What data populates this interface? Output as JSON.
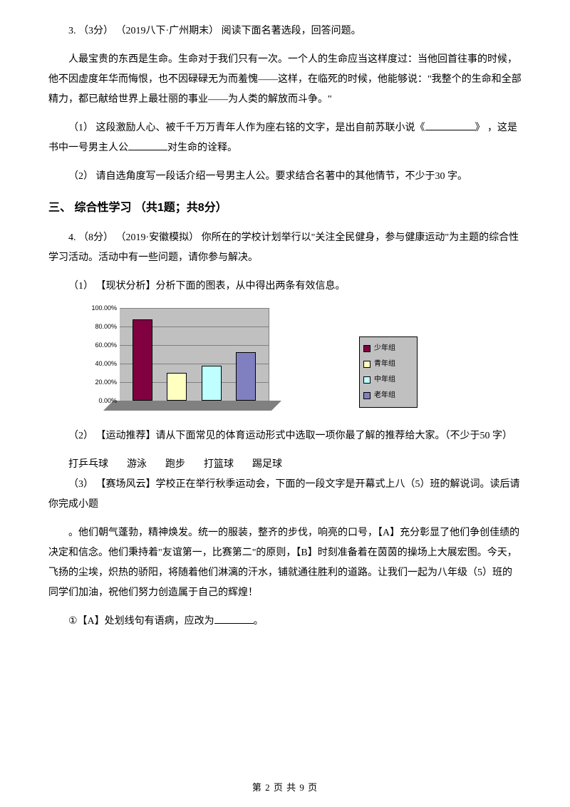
{
  "q3": {
    "head": "3. （3分） （2019八下·广州期末） 阅读下面名著选段，回答问题。",
    "passage": "人最宝贵的东西是生命。生命对于我们只有一次。一个人的生命应当这样度过：当他回首往事的时候，他不因虚度年华而悔恨，也不因碌碌无为而羞愧——这样，在临死的时候，他能够说：\"我整个的生命和全部精力，都已献给世界上最壮丽的事业——为人类的解放而斗争。\"",
    "sub1_a": "（1） 这段激励人心、被千千万万青年人作为座右铭的文字，是出自前苏联小说《",
    "sub1_b": "》  ，这是书中一号男主人公",
    "sub1_c": "对生命的诠释。",
    "sub2": "（2） 请自选角度写一段话介绍一号男主人公。要求结合名著中的其他情节，不少于30 字。"
  },
  "section3": "三、 综合性学习  （共1题；共8分）",
  "q4": {
    "head": "4. （8分） （2019·安徽模拟）  你所在的学校计划举行以\"关注全民健身，参与健康运动\"为主题的综合性学习活动。活动中有一些问题，请你参与解决。",
    "sub1": "（1） 【现状分析】分析下面的图表，从中得出两条有效信息。",
    "sub2": "（2） 【运动推荐】请从下面常见的体育运动形式中选取一项你最了解的推荐给大家。（不少于50 字）",
    "sports": [
      "打乒乓球",
      "游泳",
      "跑步",
      "打篮球",
      "踢足球"
    ],
    "sub3": "（3） 【赛场风云】学校正在举行秋季运动会，下面的一段文字是开幕式上八（5）班的解说词。读后请你完成小题",
    "speech": "。他们朝气蓬勃，精神焕发。统一的服装，整齐的步伐，响亮的口号，【A】充分彰显了他们争创佳绩的决定和信念。他们秉持着\"友谊第一，比赛第二\"的原则，【B】时刻准备着在茵茵的操场上大展宏图。今天，飞扬的尘埃，炽热的骄阳，将随着他们淋漓的汗水，铺就通往胜利的道路。让我们一起为八年级（5）班的同学们加油，祝他们努力创造属于自己的辉煌！",
    "subA": "①【A】处划线句有语病，应改为"
  },
  "chart": {
    "y_ticks": [
      "0.00%",
      "20.00%",
      "40.00%",
      "60.00%",
      "80.00%",
      "100.00%"
    ],
    "gridline_color": "#808080",
    "plot_bg": "#c0c0c0",
    "bars": [
      {
        "value": 88,
        "color": "#800040"
      },
      {
        "value": 30,
        "color": "#ffffc0"
      },
      {
        "value": 38,
        "color": "#c0ffff"
      },
      {
        "value": 52,
        "color": "#8080c0"
      }
    ],
    "legend": [
      {
        "label": "少年组",
        "color": "#800040"
      },
      {
        "label": "青年组",
        "color": "#ffffc0"
      },
      {
        "label": "中年组",
        "color": "#c0ffff"
      },
      {
        "label": "老年组",
        "color": "#8080c0"
      }
    ]
  },
  "footer": "第 2 页 共 9 页"
}
